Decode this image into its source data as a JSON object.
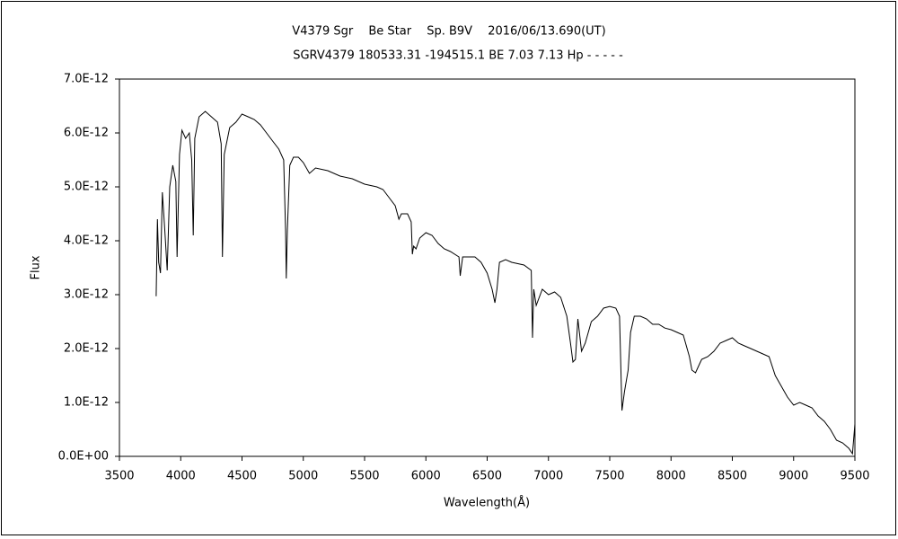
{
  "chart_data": {
    "type": "line",
    "title": "V4379 Sgr　 Be Star　 Sp. B9V　 2016/06/13.690(UT)",
    "subtitle": "SGRV4379 180533.31 -194515.1 BE 7.03 7.13 Hp - - - - -",
    "xlabel": "Wavelength(Å)",
    "ylabel": "Flux",
    "color": "#000000",
    "xlim": [
      3500,
      9500
    ],
    "xticks": [
      3500,
      4000,
      4500,
      5000,
      5500,
      6000,
      6500,
      7000,
      7500,
      8000,
      8500,
      9000,
      9500
    ],
    "ylim": [
      0,
      7e-12
    ],
    "yticks": [
      {
        "value": 0,
        "label": "0.0E+00"
      },
      {
        "value": 1e-12,
        "label": "1.0E-12"
      },
      {
        "value": 2e-12,
        "label": "2.0E-12"
      },
      {
        "value": 3e-12,
        "label": "3.0E-12"
      },
      {
        "value": 4e-12,
        "label": "4.0E-12"
      },
      {
        "value": 5e-12,
        "label": "5.0E-12"
      },
      {
        "value": 6e-12,
        "label": "6.0E-12"
      },
      {
        "value": 7e-12,
        "label": "7.0E-12"
      }
    ],
    "x": [
      3800,
      3810,
      3820,
      3835,
      3850,
      3870,
      3890,
      3910,
      3935,
      3960,
      3970,
      3990,
      4010,
      4040,
      4070,
      4090,
      4102,
      4115,
      4150,
      4200,
      4250,
      4300,
      4330,
      4340,
      4355,
      4400,
      4450,
      4500,
      4550,
      4600,
      4650,
      4700,
      4750,
      4800,
      4840,
      4855,
      4861,
      4870,
      4890,
      4920,
      4960,
      5000,
      5050,
      5100,
      5200,
      5300,
      5400,
      5500,
      5600,
      5650,
      5700,
      5750,
      5780,
      5800,
      5850,
      5880,
      5890,
      5900,
      5920,
      5950,
      6000,
      6050,
      6100,
      6150,
      6200,
      6270,
      6280,
      6300,
      6350,
      6400,
      6450,
      6500,
      6540,
      6563,
      6580,
      6600,
      6650,
      6700,
      6800,
      6860,
      6870,
      6880,
      6900,
      6950,
      7000,
      7050,
      7100,
      7150,
      7180,
      7200,
      7220,
      7240,
      7270,
      7300,
      7350,
      7400,
      7450,
      7500,
      7550,
      7580,
      7600,
      7620,
      7650,
      7670,
      7700,
      7750,
      7800,
      7850,
      7900,
      7950,
      8000,
      8050,
      8100,
      8150,
      8170,
      8200,
      8230,
      8250,
      8300,
      8350,
      8400,
      8450,
      8500,
      8550,
      8600,
      8650,
      8700,
      8750,
      8800,
      8850,
      8900,
      8950,
      9000,
      9050,
      9100,
      9150,
      9200,
      9250,
      9300,
      9350,
      9400,
      9450,
      9480,
      9500
    ],
    "values": [
      2.97e-12,
      4.4e-12,
      3.6e-12,
      3.4e-12,
      4.9e-12,
      4.2e-12,
      3.45e-12,
      5e-12,
      5.4e-12,
      5.1e-12,
      3.7e-12,
      5.6e-12,
      6.05e-12,
      5.9e-12,
      6e-12,
      5.5e-12,
      4.1e-12,
      5.9e-12,
      6.3e-12,
      6.4e-12,
      6.3e-12,
      6.2e-12,
      5.8e-12,
      3.7e-12,
      5.6e-12,
      6.1e-12,
      6.2e-12,
      6.35e-12,
      6.3e-12,
      6.25e-12,
      6.15e-12,
      6e-12,
      5.85e-12,
      5.7e-12,
      5.5e-12,
      4.2e-12,
      3.3e-12,
      4.2e-12,
      5.4e-12,
      5.55e-12,
      5.55e-12,
      5.45e-12,
      5.25e-12,
      5.35e-12,
      5.3e-12,
      5.2e-12,
      5.15e-12,
      5.05e-12,
      5e-12,
      4.95e-12,
      4.8e-12,
      4.65e-12,
      4.4e-12,
      4.5e-12,
      4.5e-12,
      4.35e-12,
      3.75e-12,
      3.9e-12,
      3.85e-12,
      4.05e-12,
      4.15e-12,
      4.1e-12,
      3.95e-12,
      3.85e-12,
      3.8e-12,
      3.7e-12,
      3.35e-12,
      3.7e-12,
      3.7e-12,
      3.7e-12,
      3.6e-12,
      3.4e-12,
      3.1e-12,
      2.85e-12,
      3.1e-12,
      3.6e-12,
      3.65e-12,
      3.6e-12,
      3.55e-12,
      3.45e-12,
      2.2e-12,
      3.1e-12,
      2.8e-12,
      3.1e-12,
      3e-12,
      3.05e-12,
      2.95e-12,
      2.6e-12,
      2.1e-12,
      1.75e-12,
      1.8e-12,
      2.55e-12,
      1.95e-12,
      2.1e-12,
      2.5e-12,
      2.6e-12,
      2.75e-12,
      2.78e-12,
      2.75e-12,
      2.6e-12,
      8.5e-13,
      1.2e-12,
      1.6e-12,
      2.3e-12,
      2.6e-12,
      2.6e-12,
      2.55e-12,
      2.45e-12,
      2.45e-12,
      2.38e-12,
      2.35e-12,
      2.3e-12,
      2.25e-12,
      1.85e-12,
      1.6e-12,
      1.55e-12,
      1.7e-12,
      1.8e-12,
      1.85e-12,
      1.95e-12,
      2.1e-12,
      2.15e-12,
      2.2e-12,
      2.1e-12,
      2.05e-12,
      2e-12,
      1.95e-12,
      1.9e-12,
      1.85e-12,
      1.5e-12,
      1.3e-12,
      1.1e-12,
      9.5e-13,
      1e-12,
      9.5e-13,
      9e-13,
      7.5e-13,
      6.5e-13,
      5e-13,
      3e-13,
      2.5e-13,
      1.5e-13,
      5e-14,
      6e-13
    ]
  }
}
